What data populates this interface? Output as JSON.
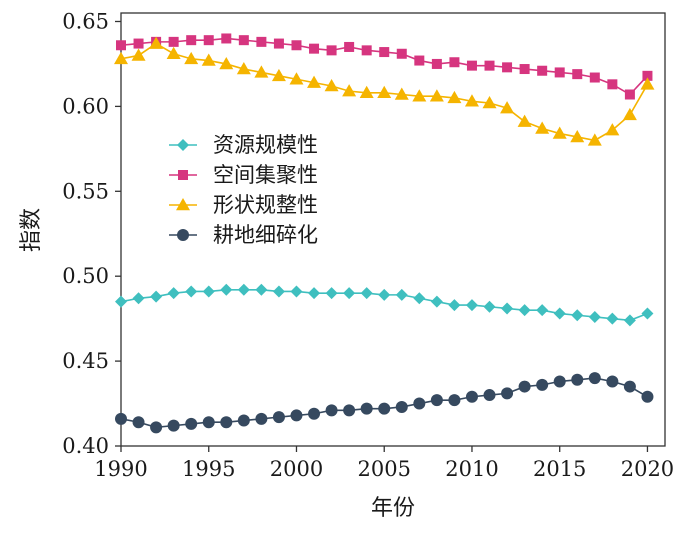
{
  "chart_data": {
    "type": "line",
    "title": "",
    "xlabel": "年份",
    "ylabel": "指数",
    "xlim": [
      1990,
      2021
    ],
    "ylim": [
      0.4,
      0.655
    ],
    "xticks": [
      1990,
      1995,
      2000,
      2005,
      2010,
      2015,
      2020
    ],
    "yticks": [
      0.4,
      0.45,
      0.5,
      0.55,
      0.6,
      0.65
    ],
    "ytick_labels": [
      "0.40",
      "0.45",
      "0.50",
      "0.55",
      "0.60",
      "0.65"
    ],
    "grid": false,
    "legend_position": "center-left",
    "x": [
      1990,
      1991,
      1992,
      1993,
      1994,
      1995,
      1996,
      1997,
      1998,
      1999,
      2000,
      2001,
      2002,
      2003,
      2004,
      2005,
      2006,
      2007,
      2008,
      2009,
      2010,
      2011,
      2012,
      2013,
      2014,
      2015,
      2016,
      2017,
      2018,
      2019,
      2020
    ],
    "series": [
      {
        "name": "资源规模性",
        "color": "#3fbfbf",
        "marker": "diamond",
        "values": [
          0.485,
          0.487,
          0.488,
          0.49,
          0.491,
          0.491,
          0.492,
          0.492,
          0.492,
          0.491,
          0.491,
          0.49,
          0.49,
          0.49,
          0.49,
          0.489,
          0.489,
          0.487,
          0.485,
          0.483,
          0.483,
          0.482,
          0.481,
          0.48,
          0.48,
          0.478,
          0.477,
          0.476,
          0.475,
          0.474,
          0.478
        ]
      },
      {
        "name": "空间集聚性",
        "color": "#d6357f",
        "marker": "square",
        "values": [
          0.636,
          0.637,
          0.638,
          0.638,
          0.639,
          0.639,
          0.64,
          0.639,
          0.638,
          0.637,
          0.636,
          0.634,
          0.633,
          0.635,
          0.633,
          0.632,
          0.631,
          0.627,
          0.625,
          0.626,
          0.624,
          0.624,
          0.623,
          0.622,
          0.621,
          0.62,
          0.619,
          0.617,
          0.613,
          0.607,
          0.618
        ]
      },
      {
        "name": "形状规整性",
        "color": "#f5b400",
        "marker": "triangle",
        "values": [
          0.628,
          0.63,
          0.637,
          0.631,
          0.628,
          0.627,
          0.625,
          0.622,
          0.62,
          0.618,
          0.616,
          0.614,
          0.612,
          0.609,
          0.608,
          0.608,
          0.607,
          0.606,
          0.606,
          0.605,
          0.603,
          0.602,
          0.599,
          0.591,
          0.587,
          0.584,
          0.582,
          0.58,
          0.586,
          0.595,
          0.613
        ]
      },
      {
        "name": "耕地细碎化",
        "color": "#36495f",
        "marker": "circle",
        "values": [
          0.416,
          0.414,
          0.411,
          0.412,
          0.413,
          0.414,
          0.414,
          0.415,
          0.416,
          0.417,
          0.418,
          0.419,
          0.421,
          0.421,
          0.422,
          0.422,
          0.423,
          0.425,
          0.427,
          0.427,
          0.429,
          0.43,
          0.431,
          0.435,
          0.436,
          0.438,
          0.439,
          0.44,
          0.438,
          0.435,
          0.429
        ]
      }
    ]
  }
}
